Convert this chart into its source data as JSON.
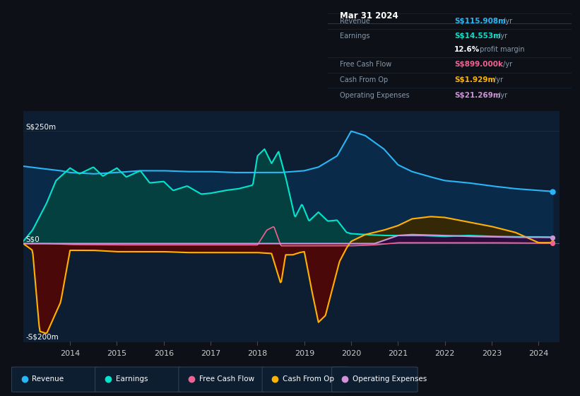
{
  "bg_color": "#0d1117",
  "plot_bg": "#0d1e30",
  "ylabel_250": "S$250m",
  "ylabel_0": "S$0",
  "ylabel_n200": "-S$200m",
  "revenue_color": "#29b6f6",
  "earnings_color": "#00e5cc",
  "fcf_color": "#f06292",
  "cashfromop_color": "#ffb300",
  "opex_color": "#ce93d8",
  "info_title": "Mar 31 2024",
  "legend_items": [
    {
      "label": "Revenue",
      "color": "#29b6f6"
    },
    {
      "label": "Earnings",
      "color": "#00e5cc"
    },
    {
      "label": "Free Cash Flow",
      "color": "#f06292"
    },
    {
      "label": "Cash From Op",
      "color": "#ffb300"
    },
    {
      "label": "Operating Expenses",
      "color": "#ce93d8"
    }
  ]
}
